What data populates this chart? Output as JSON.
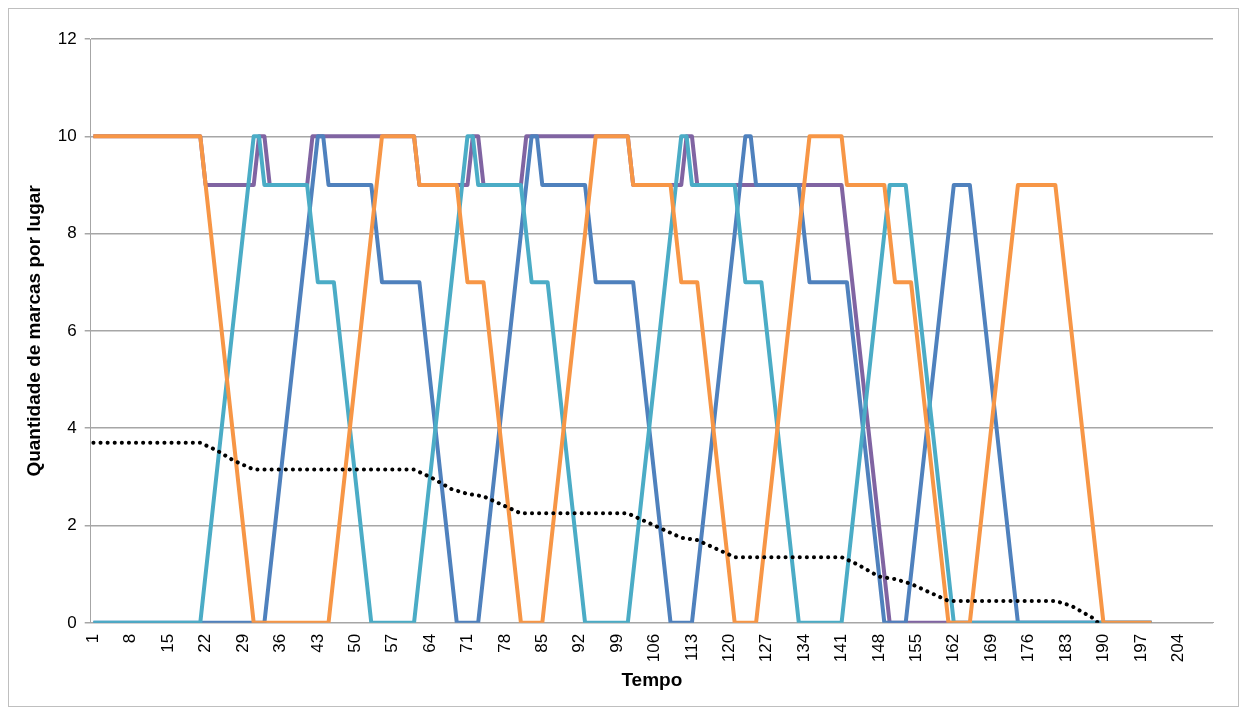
{
  "chart_data": {
    "type": "line",
    "xlabel": "Tempo",
    "ylabel": "Quantidade de marcas por lugar",
    "xlim": [
      0.5,
      210.5
    ],
    "xticks": [
      1,
      8,
      15,
      22,
      29,
      36,
      43,
      50,
      57,
      64,
      71,
      78,
      85,
      92,
      99,
      106,
      113,
      120,
      127,
      134,
      141,
      148,
      155,
      162,
      169,
      176,
      183,
      190,
      197,
      204
    ],
    "ylim": [
      0,
      12
    ],
    "yticks": [
      0,
      2,
      4,
      6,
      8,
      10,
      12
    ],
    "grid": "y",
    "marker": "none",
    "line_style": "solid",
    "series": [
      {
        "color": "#8064a2",
        "x": [
          1,
          21,
          22,
          31,
          32,
          33,
          34,
          41,
          42,
          61,
          62,
          71,
          72,
          73,
          74,
          81,
          82,
          101,
          102,
          111,
          112,
          113,
          114,
          141,
          150,
          199
        ],
        "values": [
          10,
          10,
          9,
          9,
          10,
          10,
          9,
          9,
          10,
          10,
          9,
          9,
          10,
          10,
          9,
          9,
          10,
          10,
          9,
          9,
          10,
          10,
          9,
          9,
          0,
          0
        ]
      },
      {
        "color": "#4f81bd",
        "x": [
          1,
          33,
          43,
          44,
          45,
          53,
          55,
          62,
          69,
          73,
          83,
          84,
          85,
          93,
          95,
          102,
          109,
          113,
          123,
          124,
          125,
          133,
          135,
          142,
          149,
          153,
          162,
          165,
          174,
          199
        ],
        "values": [
          0,
          0,
          10,
          10,
          9,
          9,
          7,
          7,
          0,
          0,
          10,
          10,
          9,
          9,
          7,
          7,
          0,
          0,
          10,
          10,
          9,
          9,
          7,
          7,
          0,
          0,
          9,
          9,
          0,
          0
        ]
      },
      {
        "color": "#4bacc6",
        "x": [
          1,
          21,
          31,
          32,
          33,
          41,
          43,
          46,
          53,
          61,
          71,
          72,
          73,
          81,
          83,
          86,
          93,
          101,
          111,
          112,
          113,
          121,
          123,
          126,
          133,
          141,
          150,
          153,
          162,
          199
        ],
        "values": [
          0,
          0,
          10,
          10,
          9,
          9,
          7,
          7,
          0,
          0,
          10,
          10,
          9,
          9,
          7,
          7,
          0,
          0,
          10,
          10,
          9,
          9,
          7,
          7,
          0,
          0,
          9,
          9,
          0,
          0
        ]
      },
      {
        "color": "#f79646",
        "x": [
          1,
          21,
          31,
          45,
          55,
          61,
          62,
          69,
          71,
          74,
          81,
          85,
          95,
          101,
          102,
          109,
          111,
          114,
          121,
          125,
          135,
          141,
          142,
          149,
          151,
          154,
          161,
          165,
          174,
          181,
          190,
          199
        ],
        "values": [
          10,
          10,
          0,
          0,
          10,
          10,
          9,
          9,
          7,
          7,
          0,
          0,
          10,
          10,
          9,
          9,
          7,
          7,
          0,
          0,
          10,
          10,
          9,
          9,
          7,
          7,
          0,
          0,
          9,
          9,
          0,
          0
        ]
      },
      {
        "color": "#000000",
        "line_style": "dotted",
        "x": [
          1,
          21,
          24,
          27,
          31,
          61,
          64,
          68,
          71,
          74,
          78,
          81,
          101,
          104,
          108,
          111,
          114,
          118,
          121,
          141,
          144,
          148,
          151,
          154,
          158,
          161,
          181,
          184,
          188,
          189
        ],
        "values": [
          3.7,
          3.7,
          3.55,
          3.35,
          3.15,
          3.15,
          3.0,
          2.75,
          2.65,
          2.6,
          2.4,
          2.25,
          2.25,
          2.1,
          1.9,
          1.75,
          1.7,
          1.5,
          1.35,
          1.35,
          1.2,
          0.95,
          0.9,
          0.8,
          0.6,
          0.45,
          0.45,
          0.35,
          0.1,
          0
        ]
      }
    ]
  }
}
